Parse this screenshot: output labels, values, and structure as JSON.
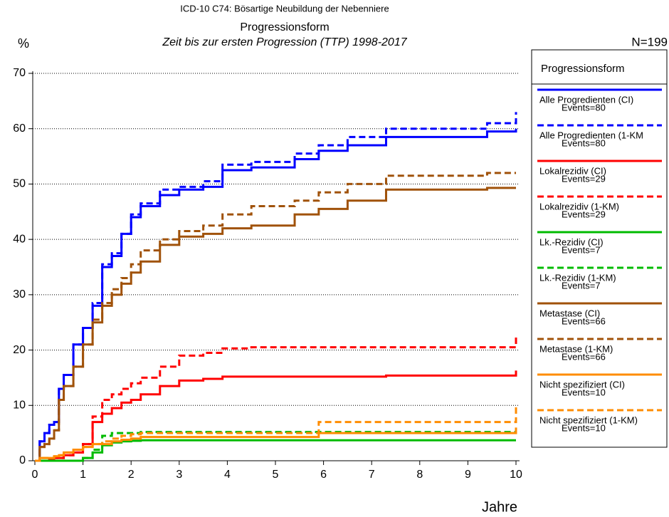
{
  "chart_data": {
    "type": "step",
    "title": "ICD-10 C74: Bösartige Neubildung der Nebenniere",
    "subtitle": "Progressionsform",
    "subtitle2": "Zeit bis zur ersten Progression (TTP) 1998-2017",
    "y_label": "%",
    "x_label": "Jahre",
    "n_label": "N=199",
    "legend_title": "Progressionsform",
    "x": [
      0,
      0.1,
      0.2,
      0.3,
      0.4,
      0.5,
      0.6,
      0.8,
      1.0,
      1.2,
      1.4,
      1.6,
      1.8,
      2.0,
      2.2,
      2.6,
      3.0,
      3.5,
      3.9,
      4.5,
      5.4,
      5.9,
      6.5,
      7.3,
      9.4,
      10
    ],
    "xlim": [
      0,
      10
    ],
    "xticks": [
      0,
      1,
      2,
      3,
      4,
      5,
      6,
      7,
      8,
      9,
      10
    ],
    "ylim": [
      0,
      70
    ],
    "yticks": [
      0,
      10,
      20,
      30,
      40,
      50,
      60,
      70
    ],
    "grid": true,
    "series": [
      {
        "name": "Alle Progredienten (CI)",
        "events": "Events=80",
        "color": "#0000ff",
        "dash": false,
        "values": [
          0,
          3.5,
          5,
          6.5,
          7,
          13,
          15.5,
          21,
          24,
          28,
          35,
          37,
          41,
          44,
          46,
          48,
          49,
          49.5,
          52.5,
          53,
          54.5,
          56,
          57,
          58.5,
          59.5,
          60
        ]
      },
      {
        "name": "Alle Progredienten (1-KM",
        "events": "Events=80",
        "color": "#0000ff",
        "dash": true,
        "values": [
          0,
          3.5,
          5,
          6.5,
          7,
          13,
          15.5,
          21,
          24,
          28.5,
          35.5,
          37.5,
          41,
          44.5,
          46.5,
          49,
          49.5,
          50.5,
          53.5,
          54,
          55.5,
          57,
          58.5,
          60,
          61,
          63
        ]
      },
      {
        "name": "Lokalrezidiv (CI)",
        "events": "Events=29",
        "color": "#ff0000",
        "dash": false,
        "values": [
          0,
          0,
          0,
          0.3,
          0.5,
          0.5,
          1,
          1.5,
          3,
          7,
          8.5,
          9.5,
          10.5,
          11,
          12,
          13.5,
          14.5,
          14.8,
          15.2,
          15.2,
          15.2,
          15.2,
          15.2,
          15.4,
          15.4,
          16.3
        ]
      },
      {
        "name": "Lokalrezidiv (1-KM)",
        "events": "Events=29",
        "color": "#ff0000",
        "dash": true,
        "values": [
          0,
          0,
          0,
          0.3,
          0.5,
          0.5,
          1,
          1.5,
          3,
          8,
          11,
          12,
          13,
          14,
          15,
          17,
          19,
          19.5,
          20.3,
          20.5,
          20.5,
          20.5,
          20.5,
          20.5,
          20.5,
          22.7
        ]
      },
      {
        "name": "Lk.-Rezidiv (CI)",
        "events": "Events=7",
        "color": "#00bb00",
        "dash": false,
        "values": [
          0,
          0,
          0,
          0,
          0,
          0,
          0,
          0,
          0.5,
          1.5,
          2.8,
          3.3,
          3.5,
          3.6,
          3.7,
          3.7,
          3.7,
          3.7,
          3.7,
          3.7,
          3.7,
          3.7,
          3.7,
          3.7,
          3.7,
          3.7
        ]
      },
      {
        "name": "Lk.-Rezidiv (1-KM)",
        "events": "Events=7",
        "color": "#00bb00",
        "dash": true,
        "values": [
          0,
          0,
          0,
          0,
          0,
          0,
          0,
          0,
          0.5,
          2,
          4.5,
          5,
          5,
          5,
          5.2,
          5.2,
          5.2,
          5.2,
          5.2,
          5.2,
          5.2,
          5.2,
          5.2,
          5.2,
          5.2,
          5.2
        ]
      },
      {
        "name": "Metastase (CI)",
        "events": "Events=66",
        "color": "#a0520a",
        "dash": false,
        "values": [
          0,
          2.5,
          3,
          4,
          5.5,
          11,
          13.5,
          17,
          21,
          25,
          28,
          30,
          32,
          34,
          36,
          39,
          40.5,
          41,
          42,
          42.5,
          44.5,
          45.5,
          47,
          49,
          49.3,
          49.3
        ]
      },
      {
        "name": "Metastase (1-KM)",
        "events": "Events=66",
        "color": "#a0520a",
        "dash": true,
        "values": [
          0,
          2.5,
          3,
          4,
          5.5,
          11,
          13.5,
          17,
          21,
          25.5,
          28.5,
          31,
          33,
          35.5,
          38,
          40,
          41.5,
          42.5,
          44.5,
          46,
          47,
          48.5,
          50,
          51.5,
          52,
          52
        ]
      },
      {
        "name": "Nicht spezifiziert (CI)",
        "events": "Events=10",
        "color": "#ff8c00",
        "dash": false,
        "values": [
          0,
          0.5,
          0.5,
          0.5,
          0.8,
          1,
          1.5,
          2,
          2.5,
          3,
          3,
          3.5,
          3.8,
          4,
          4.3,
          4.3,
          4.3,
          4.3,
          4.3,
          4.3,
          4.3,
          5,
          5,
          5,
          5,
          6
        ]
      },
      {
        "name": "Nicht spezifiziert (1-KM)",
        "events": "Events=10",
        "color": "#ff8c00",
        "dash": true,
        "values": [
          0,
          0.5,
          0.5,
          0.5,
          0.8,
          1,
          1.5,
          2,
          2.5,
          3,
          3.5,
          4,
          4.5,
          4.8,
          5,
          5,
          5,
          5,
          5,
          5,
          5,
          7,
          7,
          7,
          7,
          10
        ]
      }
    ]
  }
}
